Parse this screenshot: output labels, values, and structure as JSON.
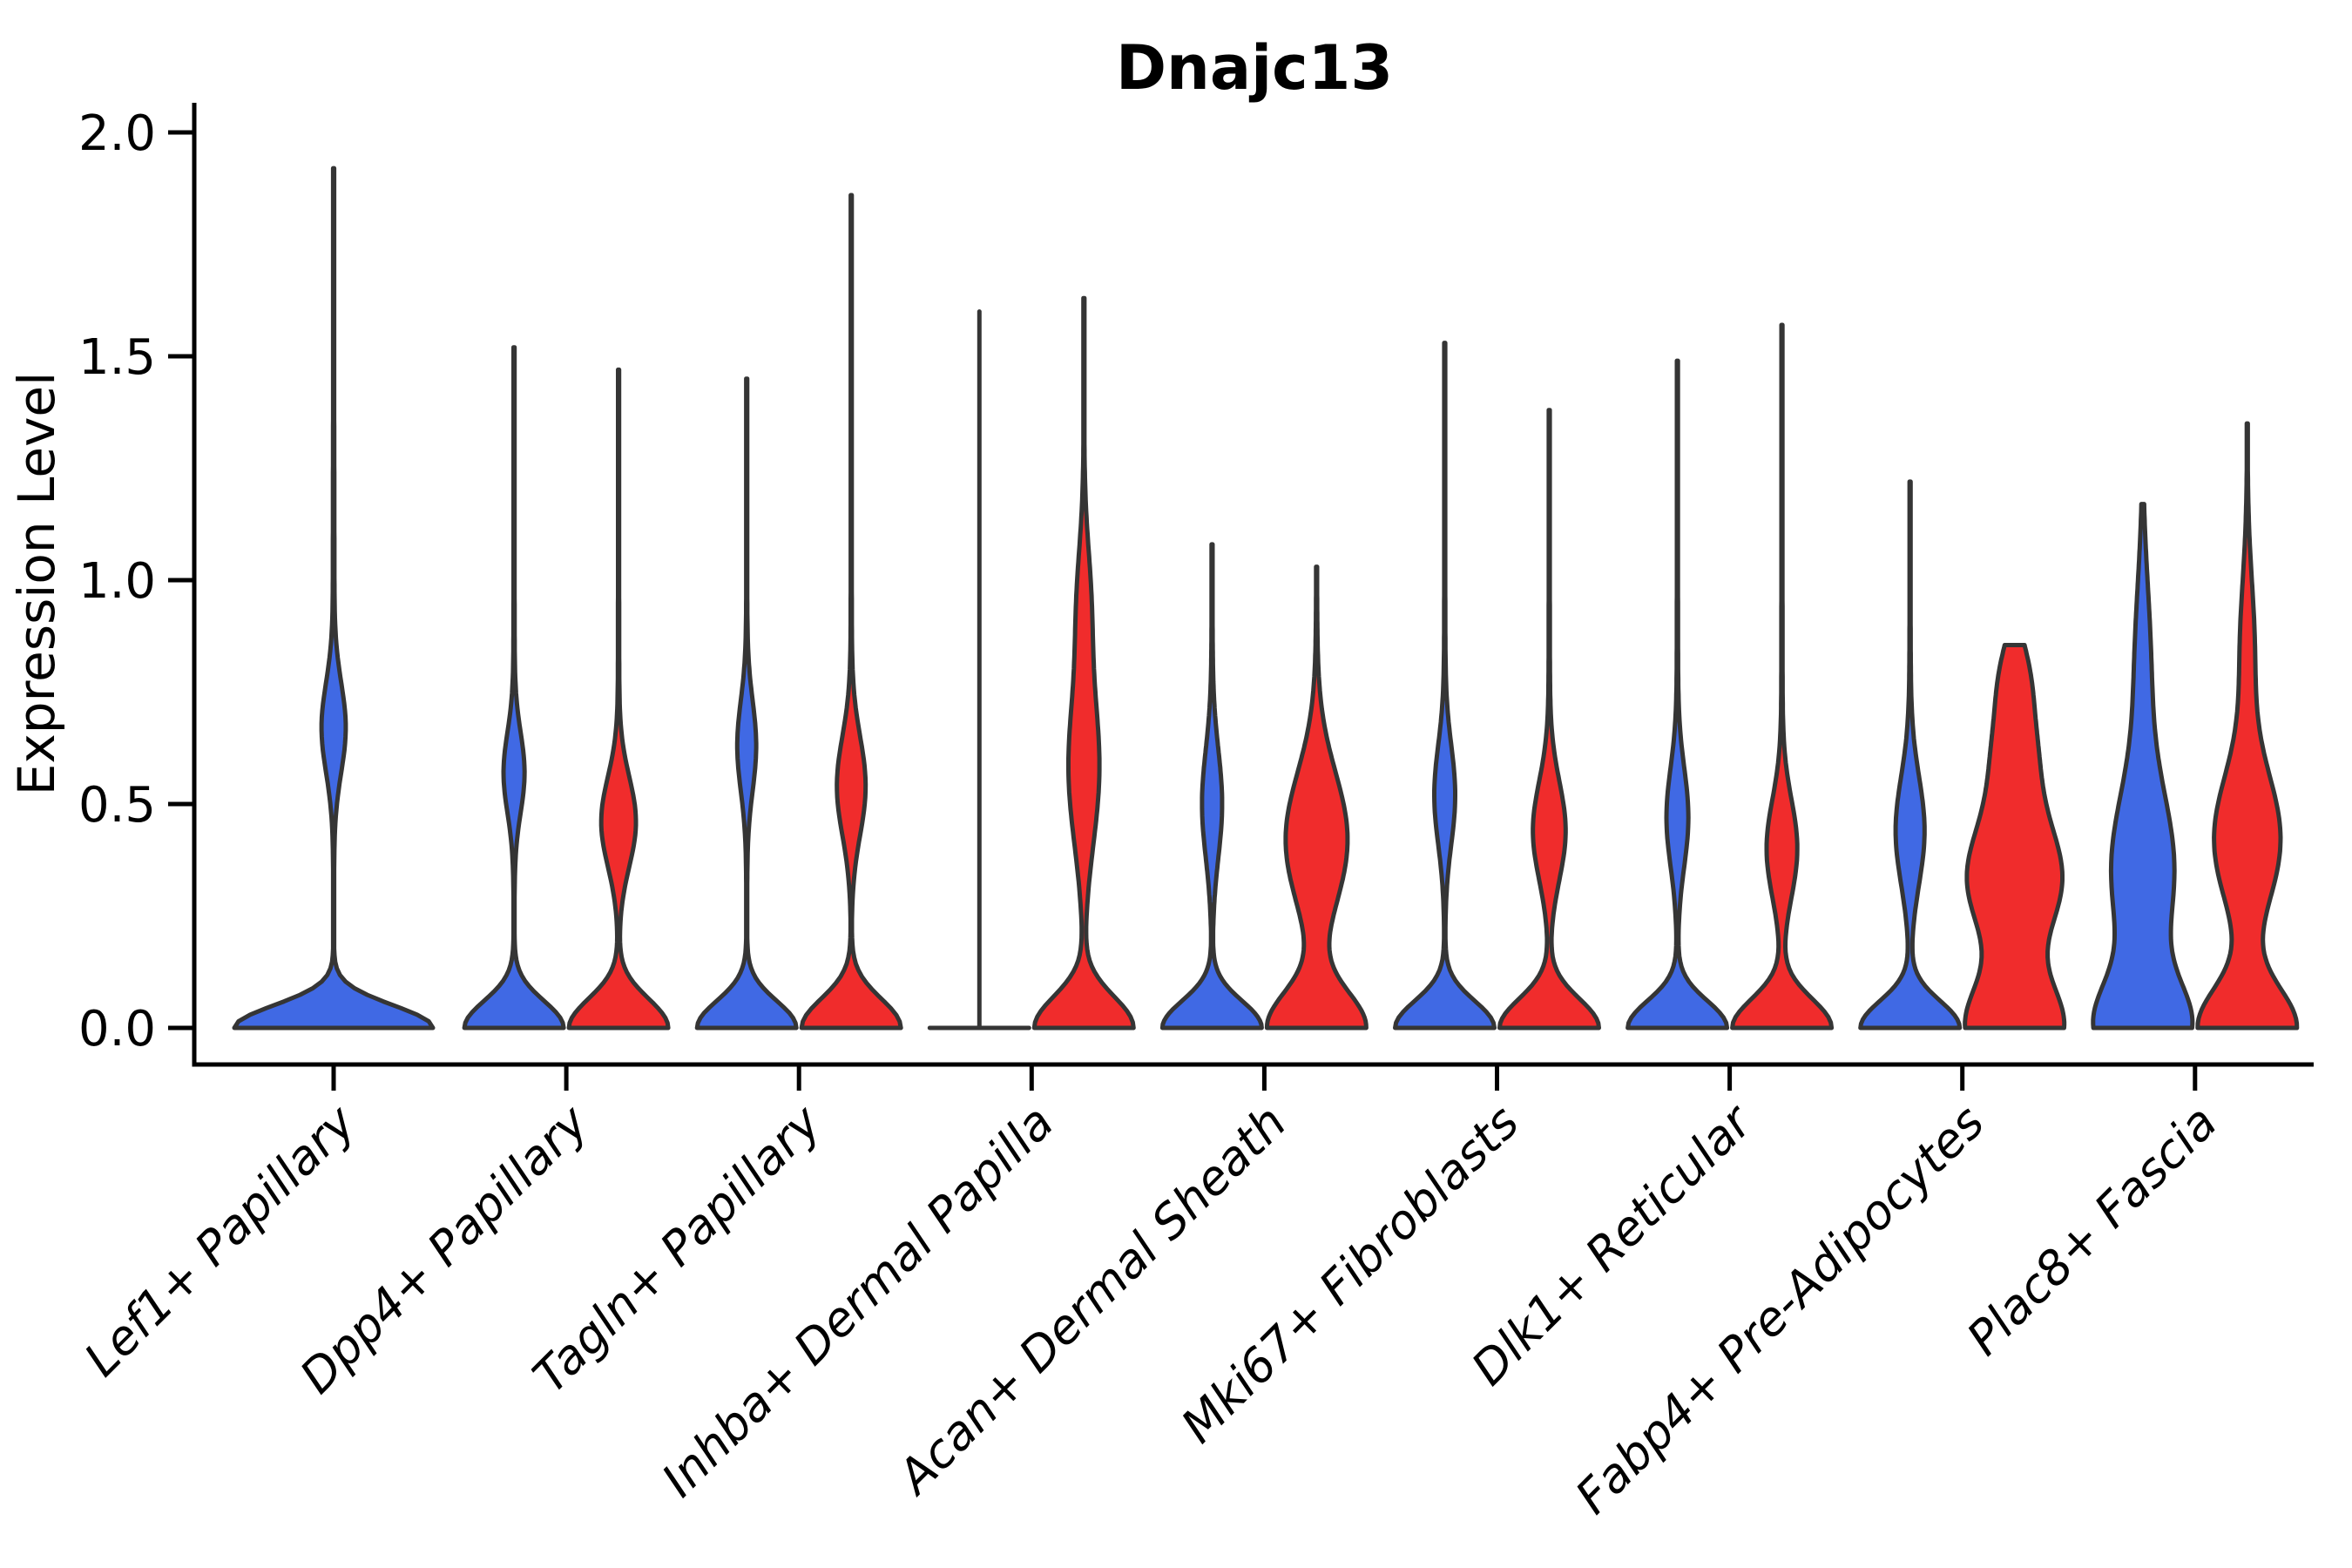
{
  "title": "Dnajc13",
  "axes": {
    "ylabel": "Expression Level",
    "ytick_labels": [
      "0.0",
      "0.5",
      "1.0",
      "1.5",
      "2.0"
    ]
  },
  "colors": {
    "blue": "#4069E4",
    "red": "#F02C2C",
    "outline": "#353535",
    "axis": "#000000"
  },
  "chart_data": {
    "type": "violin",
    "title": "Dnajc13",
    "xlabel": "",
    "ylabel": "Expression Level",
    "ylim": [
      0,
      2
    ],
    "yticks": [
      0,
      0.5,
      1,
      1.5,
      2
    ],
    "grid": false,
    "legend": "none",
    "categories": [
      "Lef1+ Papillary",
      "Dpp4+ Papillary",
      "Tagln+ Papillary",
      "Inhba+ Dermal Papilla",
      "Acan+ Dermal Sheath",
      "Mki67+ Fibroblasts",
      "Dlk1+ Reticular",
      "Fabp4+ Pre-Adipocytes",
      "Plac8+ Fascia"
    ],
    "series": [
      {
        "name": "blue",
        "color": "#4069E4",
        "violins": [
          {
            "present": true,
            "shape": "kde",
            "max_expression": 1.92,
            "width": 2.0,
            "components": [
              [
                0,
                0.05,
                1.0
              ],
              [
                0.67,
                0.1,
                0.115
              ],
              [
                0.9,
                0.55,
                0.008
              ]
            ]
          },
          {
            "present": true,
            "shape": "kde",
            "max_expression": 1.52,
            "width": 1.0,
            "components": [
              [
                0,
                0.06,
                1.0
              ],
              [
                0.57,
                0.09,
                0.2
              ],
              [
                0.7,
                0.5,
                0.013
              ]
            ]
          },
          {
            "present": true,
            "shape": "kde",
            "max_expression": 1.45,
            "width": 1.0,
            "components": [
              [
                0,
                0.06,
                1.0
              ],
              [
                0.63,
                0.1,
                0.18
              ],
              [
                0.7,
                0.5,
                0.012
              ]
            ]
          },
          {
            "present": true,
            "shape": "collapsed-line",
            "max_expression": 1.6,
            "width": 1.0,
            "components": []
          },
          {
            "present": true,
            "shape": "kde",
            "max_expression": 1.08,
            "width": 1.0,
            "components": [
              [
                0,
                0.06,
                1.0
              ],
              [
                0.5,
                0.12,
                0.19
              ],
              [
                0.6,
                0.4,
                0.014
              ]
            ]
          },
          {
            "present": true,
            "shape": "kde",
            "max_expression": 1.53,
            "width": 1.0,
            "components": [
              [
                0,
                0.06,
                1.0
              ],
              [
                0.52,
                0.11,
                0.2
              ],
              [
                0.7,
                0.5,
                0.013
              ]
            ]
          },
          {
            "present": true,
            "shape": "kde",
            "max_expression": 1.49,
            "width": 1.0,
            "components": [
              [
                0,
                0.06,
                1.0
              ],
              [
                0.47,
                0.11,
                0.21
              ],
              [
                0.7,
                0.5,
                0.013
              ]
            ]
          },
          {
            "present": true,
            "shape": "kde",
            "max_expression": 1.22,
            "width": 1.0,
            "components": [
              [
                0,
                0.06,
                1.0
              ],
              [
                0.44,
                0.12,
                0.28
              ],
              [
                0.6,
                0.45,
                0.014
              ]
            ]
          },
          {
            "present": true,
            "shape": "kde",
            "max_expression": 1.17,
            "width": 1.0,
            "components": [
              [
                0,
                0.1,
                0.9
              ],
              [
                0.35,
                0.18,
                0.62
              ],
              [
                0.82,
                0.18,
                0.14
              ],
              [
                0.6,
                0.4,
                0.018
              ]
            ]
          }
        ]
      },
      {
        "name": "red",
        "color": "#F02C2C",
        "violins": [
          {
            "present": false
          },
          {
            "present": true,
            "shape": "kde",
            "max_expression": 1.47,
            "width": 1.0,
            "components": [
              [
                0,
                0.065,
                1.0
              ],
              [
                0.46,
                0.1,
                0.34
              ],
              [
                0.7,
                0.5,
                0.013
              ]
            ]
          },
          {
            "present": true,
            "shape": "kde",
            "max_expression": 1.86,
            "width": 1.0,
            "components": [
              [
                0,
                0.065,
                1.0
              ],
              [
                0.54,
                0.11,
                0.28
              ],
              [
                0.8,
                0.5,
                0.012
              ]
            ]
          },
          {
            "present": true,
            "shape": "kde",
            "max_expression": 1.63,
            "width": 1.0,
            "components": [
              [
                0,
                0.07,
                1.0
              ],
              [
                0.58,
                0.17,
                0.3
              ],
              [
                0.95,
                0.13,
                0.12
              ],
              [
                0.8,
                0.5,
                0.013
              ]
            ]
          },
          {
            "present": true,
            "shape": "kde",
            "max_expression": 1.03,
            "width": 1.0,
            "components": [
              [
                0,
                0.08,
                1.0
              ],
              [
                0.42,
                0.15,
                0.62
              ],
              [
                0.6,
                0.4,
                0.016
              ]
            ]
          },
          {
            "present": true,
            "shape": "kde",
            "max_expression": 1.38,
            "width": 1.0,
            "components": [
              [
                0,
                0.065,
                1.0
              ],
              [
                0.44,
                0.11,
                0.32
              ],
              [
                0.7,
                0.5,
                0.013
              ]
            ]
          },
          {
            "present": true,
            "shape": "kde",
            "max_expression": 1.57,
            "width": 1.0,
            "components": [
              [
                0,
                0.065,
                1.0
              ],
              [
                0.4,
                0.11,
                0.3
              ],
              [
                0.7,
                0.5,
                0.013
              ]
            ]
          },
          {
            "present": true,
            "shape": "flat-top",
            "max_expression": 0.855,
            "width": 1.0,
            "components": [
              [
                0,
                0.1,
                0.8
              ],
              [
                0.33,
                0.13,
                0.78
              ],
              [
                0.62,
                0.12,
                0.33
              ],
              [
                0.8,
                0.08,
                0.15
              ]
            ]
          },
          {
            "present": true,
            "shape": "kde",
            "max_expression": 1.35,
            "width": 1.0,
            "components": [
              [
                0,
                0.09,
                0.9
              ],
              [
                0.42,
                0.15,
                0.6
              ],
              [
                0.85,
                0.15,
                0.12
              ],
              [
                0.7,
                0.45,
                0.014
              ]
            ]
          }
        ]
      }
    ]
  }
}
